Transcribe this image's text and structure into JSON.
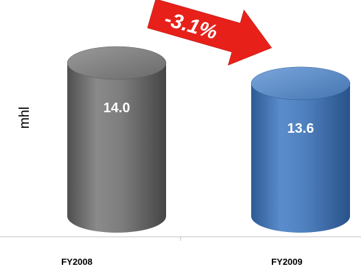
{
  "chart_data": {
    "type": "bar",
    "categories": [
      "FY2008",
      "FY2009"
    ],
    "values": [
      14.0,
      13.6
    ],
    "value_labels": [
      "14.0",
      "13.6"
    ],
    "title": "",
    "xlabel": "",
    "ylabel": "mhl",
    "change_annotation": "-3.1%",
    "colors": {
      "FY2008": "#7a7a7a",
      "FY2009": "#4a7ab8",
      "arrow": "#e8201a"
    },
    "grid": false,
    "legend": "none"
  }
}
